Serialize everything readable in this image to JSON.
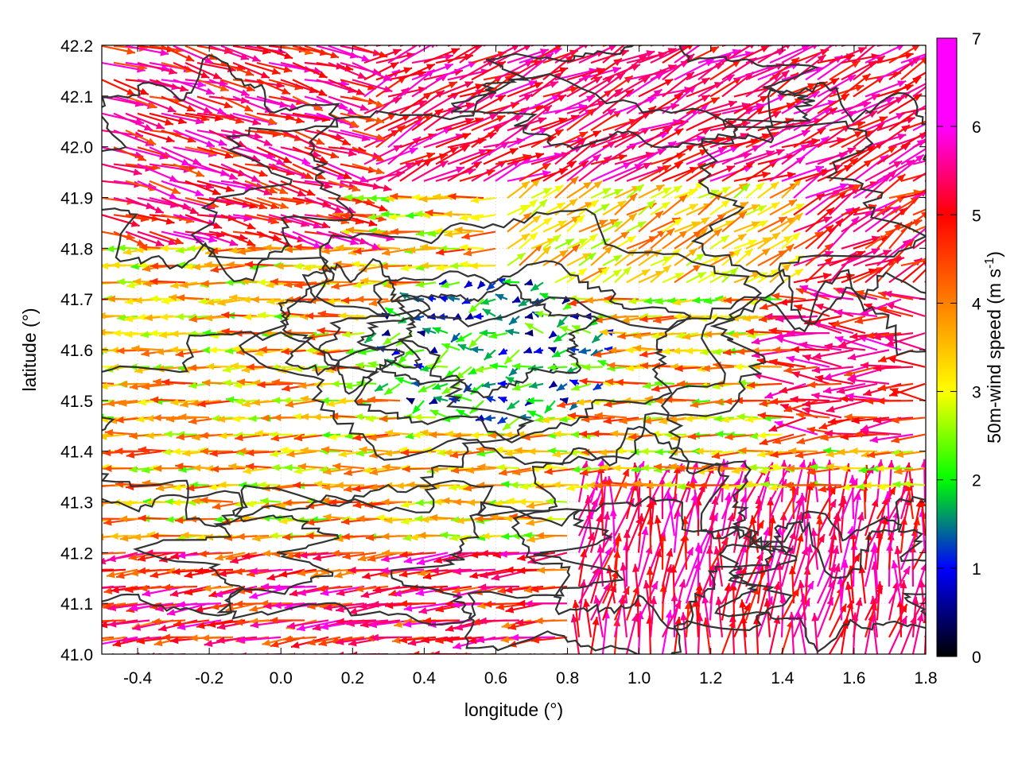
{
  "chart_data": {
    "type": "vector-field",
    "xlabel": "longitude (°)",
    "ylabel": "latitude (°)",
    "xlim": [
      -0.5,
      1.8
    ],
    "ylim": [
      41.0,
      42.2
    ],
    "xticks": [
      -0.4,
      -0.2,
      0.0,
      0.2,
      0.4,
      0.6,
      0.8,
      1.0,
      1.2,
      1.4,
      1.6,
      1.8
    ],
    "xtick_labels": [
      "-0.4",
      "-0.2",
      "0.0",
      "0.2",
      "0.4",
      "0.6",
      "0.8",
      "1.0",
      "1.2",
      "1.4",
      "1.6",
      "1.8"
    ],
    "yticks": [
      41.0,
      41.1,
      41.2,
      41.3,
      41.4,
      41.5,
      41.6,
      41.7,
      41.8,
      41.9,
      42.0,
      42.1,
      42.2
    ],
    "ytick_labels": [
      "41.0",
      "41.1",
      "41.2",
      "41.3",
      "41.4",
      "41.5",
      "41.6",
      "41.7",
      "41.8",
      "41.9",
      "42.0",
      "42.1",
      "42.2"
    ],
    "grid": true,
    "colorbar": {
      "label": "50m-wind speed (m s",
      "label_sup": "-1",
      "label_end": ")",
      "range": [
        0,
        7
      ],
      "ticks": [
        0,
        1,
        2,
        3,
        4,
        5,
        6,
        7
      ],
      "tick_labels": [
        "0",
        "1",
        "2",
        "3",
        "4",
        "5",
        "6",
        "7"
      ],
      "colors": [
        "#000000",
        "#0000ff",
        "#00ff00",
        "#ffff00",
        "#ff8000",
        "#ff0000",
        "#ff00ff"
      ]
    },
    "contour_color": "#333333",
    "grid_step_deg": {
      "lon": 0.0333,
      "lat": 0.0333
    },
    "wind_field_notes": "Winds generally from east (westward-pointing arrows) over the central lowland, weak 0-3 m/s in the centre basin around lon 0.3-0.9 lat 41.45-41.8; strong 6-7 m/s in NW (blowing SE-ward), SE and E regions; southerly onshore flow near lon 0.8-1.2 lat 41.0-41.3"
  }
}
